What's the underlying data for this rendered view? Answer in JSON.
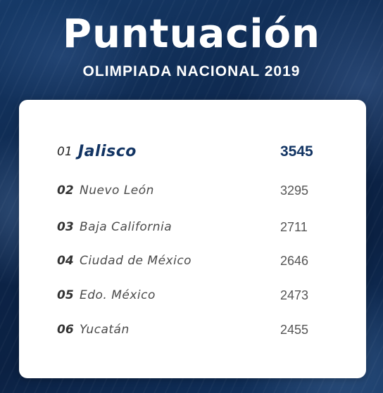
{
  "header": {
    "title": "Puntuación",
    "subtitle": "OLIMPIADA NACIONAL 2019"
  },
  "colors": {
    "background": "#0e2a4f",
    "card": "#ffffff",
    "highlight": "#123463",
    "text": "#4a4a4a"
  },
  "ranking": [
    {
      "rank": "01",
      "name": "Jalisco",
      "score": "3545"
    },
    {
      "rank": "02",
      "name": "Nuevo León",
      "score": "3295"
    },
    {
      "rank": "03",
      "name": "Baja California",
      "score": "2711"
    },
    {
      "rank": "04",
      "name": "Ciudad de México",
      "score": "2646"
    },
    {
      "rank": "05",
      "name": "Edo. México",
      "score": "2473"
    },
    {
      "rank": "06",
      "name": "Yucatán",
      "score": "2455"
    }
  ]
}
